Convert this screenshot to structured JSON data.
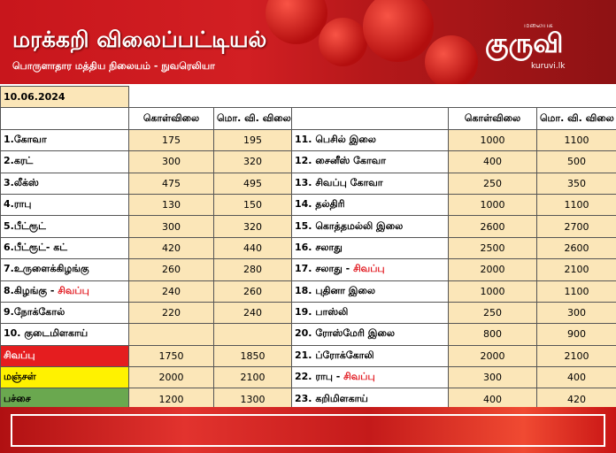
{
  "banner": {
    "title": "மரக்கறி விலைப்பட்டியல்",
    "subtitle": "பொருளாதார மத்திய நிலையம் - நுவரெலியா",
    "logo_main": "குருவி",
    "logo_small": "மலையக",
    "logo_url": "kuruvi.lk"
  },
  "date": "10.06.2024",
  "headers": {
    "wholesale": "கொள்விலை",
    "retail": "மொ. வி. விலை"
  },
  "colors": {
    "banner": "#c8161c",
    "value_cell": "#fbe6b8",
    "red_label": "#e51d1f",
    "yellow_label": "#fff200",
    "green_label": "#6aa84f"
  },
  "left": [
    {
      "label": "1.கோவா",
      "wholesale": "175",
      "retail": "195"
    },
    {
      "label": "2.கரட்",
      "wholesale": "300",
      "retail": "320"
    },
    {
      "label": "3.லீக்ஸ்",
      "wholesale": "475",
      "retail": "495"
    },
    {
      "label": "4.ராபு",
      "wholesale": "130",
      "retail": "150"
    },
    {
      "label": "5.பீட்ரூட்",
      "wholesale": "300",
      "retail": "320"
    },
    {
      "label": "6.பீட்ரூட்- கட்",
      "wholesale": "420",
      "retail": "440"
    },
    {
      "label": "7.உருளைக்கிழங்கு",
      "wholesale": "260",
      "retail": "280"
    },
    {
      "label": "8.கிழங்கு - ",
      "label_red": "சிவப்பு",
      "wholesale": "240",
      "retail": "260"
    },
    {
      "label": "9.நோக்கோல்",
      "wholesale": "220",
      "retail": "240"
    },
    {
      "label": "10. குடைமிளகாய்",
      "wholesale": "",
      "retail": ""
    },
    {
      "label": "சிவப்பு",
      "wholesale": "1750",
      "retail": "1850"
    },
    {
      "label": "மஞ்சள்",
      "wholesale": "2000",
      "retail": "2100"
    },
    {
      "label": "பச்சை",
      "wholesale": "1200",
      "retail": "1300"
    }
  ],
  "right": [
    {
      "label": "11. பெசில் இலை",
      "wholesale": "1000",
      "retail": "1100"
    },
    {
      "label": "12. சைனீஸ் கோவா",
      "wholesale": "400",
      "retail": "500"
    },
    {
      "label": "13. சிவப்பு கோவா",
      "wholesale": "250",
      "retail": "350"
    },
    {
      "label": "14. தல்திரி",
      "wholesale": "1000",
      "retail": "1100"
    },
    {
      "label": "15. கொத்தமல்லி இலை",
      "wholesale": "2600",
      "retail": "2700"
    },
    {
      "label": "16. சலாது",
      "wholesale": "2500",
      "retail": "2600"
    },
    {
      "label": "17. சலாது - ",
      "label_red": "சிவப்பு",
      "wholesale": "2000",
      "retail": "2100"
    },
    {
      "label": "18. புதினா இலை",
      "wholesale": "1000",
      "retail": "1100"
    },
    {
      "label": "19. பாஸ்லி",
      "wholesale": "250",
      "retail": "300"
    },
    {
      "label": "20. ரோஸ்மேரி இலை",
      "wholesale": "800",
      "retail": "900"
    },
    {
      "label": "21. ப்ரோக்கோலி",
      "wholesale": "2000",
      "retail": "2100"
    },
    {
      "label": "22. ராபு - ",
      "label_red": "சிவப்பு",
      "wholesale": "300",
      "retail": "400"
    },
    {
      "label": "23. கறிமிளகாய்",
      "wholesale": "400",
      "retail": "420"
    }
  ]
}
